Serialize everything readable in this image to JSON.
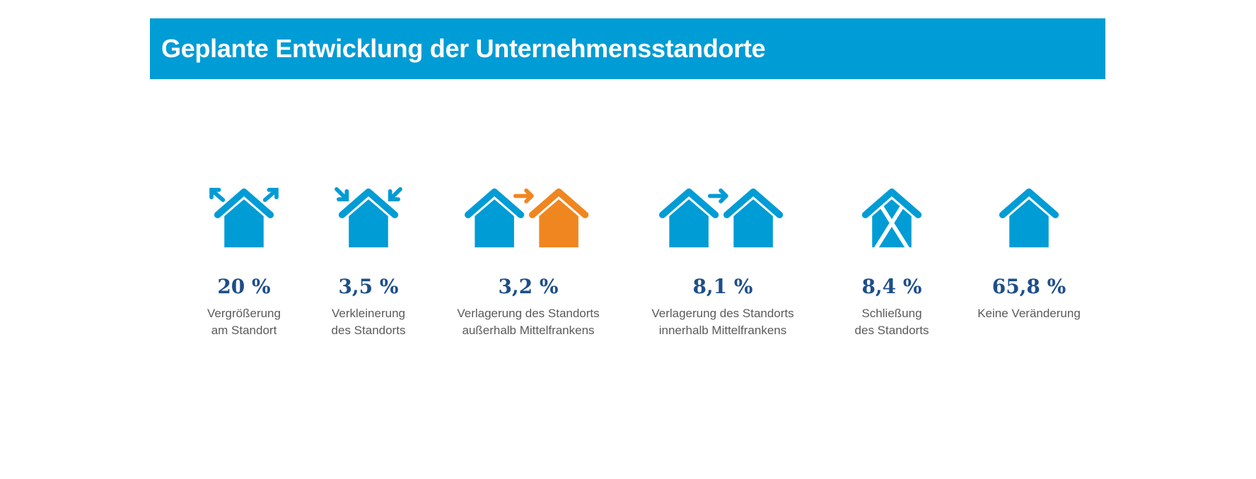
{
  "header": {
    "title": "Geplante Entwicklung der Unternehmensstandorte"
  },
  "colors": {
    "blue": "#009cd5",
    "orange": "#f0861f",
    "value_text": "#1d4e89"
  },
  "chart_data": {
    "type": "table",
    "title": "Geplante Entwicklung der Unternehmensstandorte",
    "unit": "%",
    "items": [
      {
        "icon": "house-expand-icon",
        "value_label": "20 %",
        "value": 20,
        "label_lines": [
          "Vergrößerung",
          "am Standort"
        ]
      },
      {
        "icon": "house-shrink-icon",
        "value_label": "3,5 %",
        "value": 3.5,
        "label_lines": [
          "Verkleinerung",
          "des Standorts"
        ]
      },
      {
        "icon": "house-relocate-outside-icon",
        "value_label": "3,2 %",
        "value": 3.2,
        "label_lines": [
          "Verlagerung des Standorts",
          "außerhalb Mittelfrankens"
        ]
      },
      {
        "icon": "house-relocate-inside-icon",
        "value_label": "8,1 %",
        "value": 8.1,
        "label_lines": [
          "Verlagerung des Standorts",
          "innerhalb Mittelfrankens"
        ]
      },
      {
        "icon": "house-closed-icon",
        "value_label": "8,4 %",
        "value": 8.4,
        "label_lines": [
          "Schließung",
          "des Standorts"
        ]
      },
      {
        "icon": "house-icon",
        "value_label": "65,8 %",
        "value": 65.8,
        "label_lines": [
          "Keine Veränderung"
        ]
      }
    ]
  }
}
